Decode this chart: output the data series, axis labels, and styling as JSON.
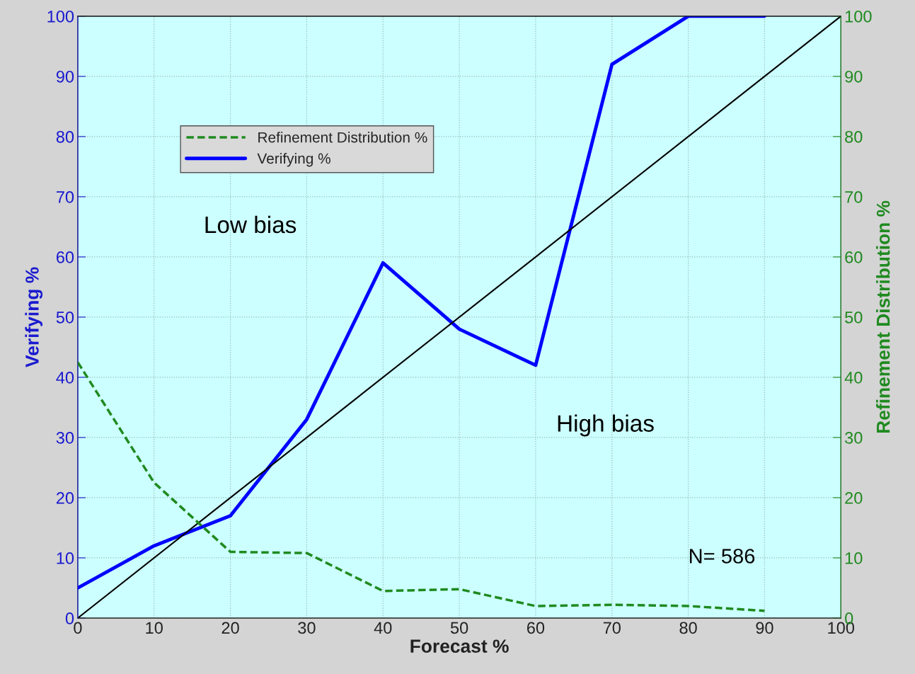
{
  "chart_data": {
    "type": "line",
    "xlabel": "Forecast %",
    "ylabel": "Verifying %",
    "y2label": "Refinement Distribution %",
    "x": [
      0,
      10,
      20,
      30,
      40,
      50,
      60,
      70,
      80,
      90
    ],
    "series": [
      {
        "name": "Refinement Distribution %",
        "color": "#1f8a1f",
        "axis": "y2",
        "line_style": "dashed",
        "values": [
          42.5,
          22.5,
          11,
          10.8,
          4.5,
          4.8,
          2,
          2.2,
          2,
          1.2
        ]
      },
      {
        "name": "Verifying %",
        "color": "#0000ff",
        "line_style": "solid",
        "values": [
          5,
          12,
          17,
          33,
          59,
          48,
          42,
          92,
          100,
          100
        ]
      },
      {
        "color": "#000000",
        "line_style": "solid",
        "x": [
          0,
          100
        ],
        "values": [
          0,
          100
        ]
      }
    ],
    "xlim": [
      0,
      100
    ],
    "xticks": [
      0,
      10,
      20,
      30,
      40,
      50,
      60,
      70,
      80,
      90,
      100
    ],
    "ylim": [
      0,
      100
    ],
    "yticks": [
      0,
      10,
      20,
      30,
      40,
      50,
      60,
      70,
      80,
      90,
      100
    ],
    "y2lim": [
      0,
      100
    ],
    "y2ticks": [
      0,
      10,
      20,
      30,
      40,
      50,
      60,
      70,
      80,
      90,
      100
    ],
    "grid": true,
    "legend": "top left",
    "marker": "none",
    "annotations": [
      "Low bias",
      "High bias",
      "N= 586"
    ]
  }
}
